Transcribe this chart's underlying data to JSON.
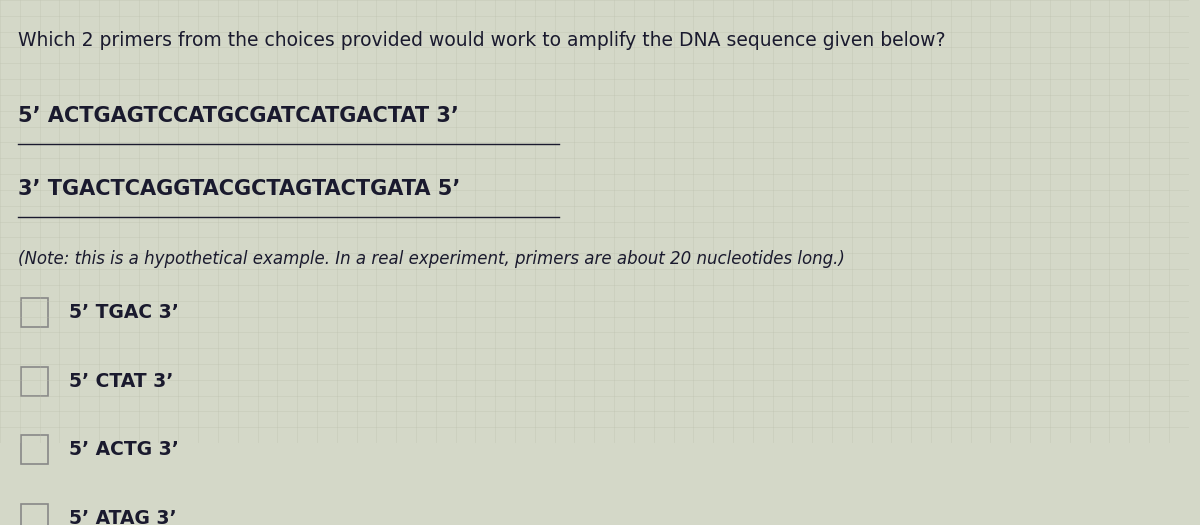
{
  "background_color": "#d4d8c8",
  "grid_color": "#b8bcaa",
  "title_text": "Which 2 primers from the choices provided would work to amplify the DNA sequence given below?",
  "seq1": "5’ ACTGAGTCCATGCGATCATGACTAT 3’",
  "seq2": "3’ TGACTCAGGTACGCTAGTACTGATA 5’",
  "note_text": "(Note: this is a hypothetical example. In a real experiment, primers are about 20 nucleotides long.)",
  "choices": [
    "5’ TGAC 3’",
    "5’ CTAT 3’",
    "5’ ACTG 3’",
    "5’ ATAG 3’"
  ],
  "text_color": "#1a1a2e",
  "seq_color": "#1a1a2e",
  "font_size_title": 13.5,
  "font_size_seq": 15,
  "font_size_note": 12,
  "font_size_choice": 13.5,
  "checkbox_color": "#888888"
}
